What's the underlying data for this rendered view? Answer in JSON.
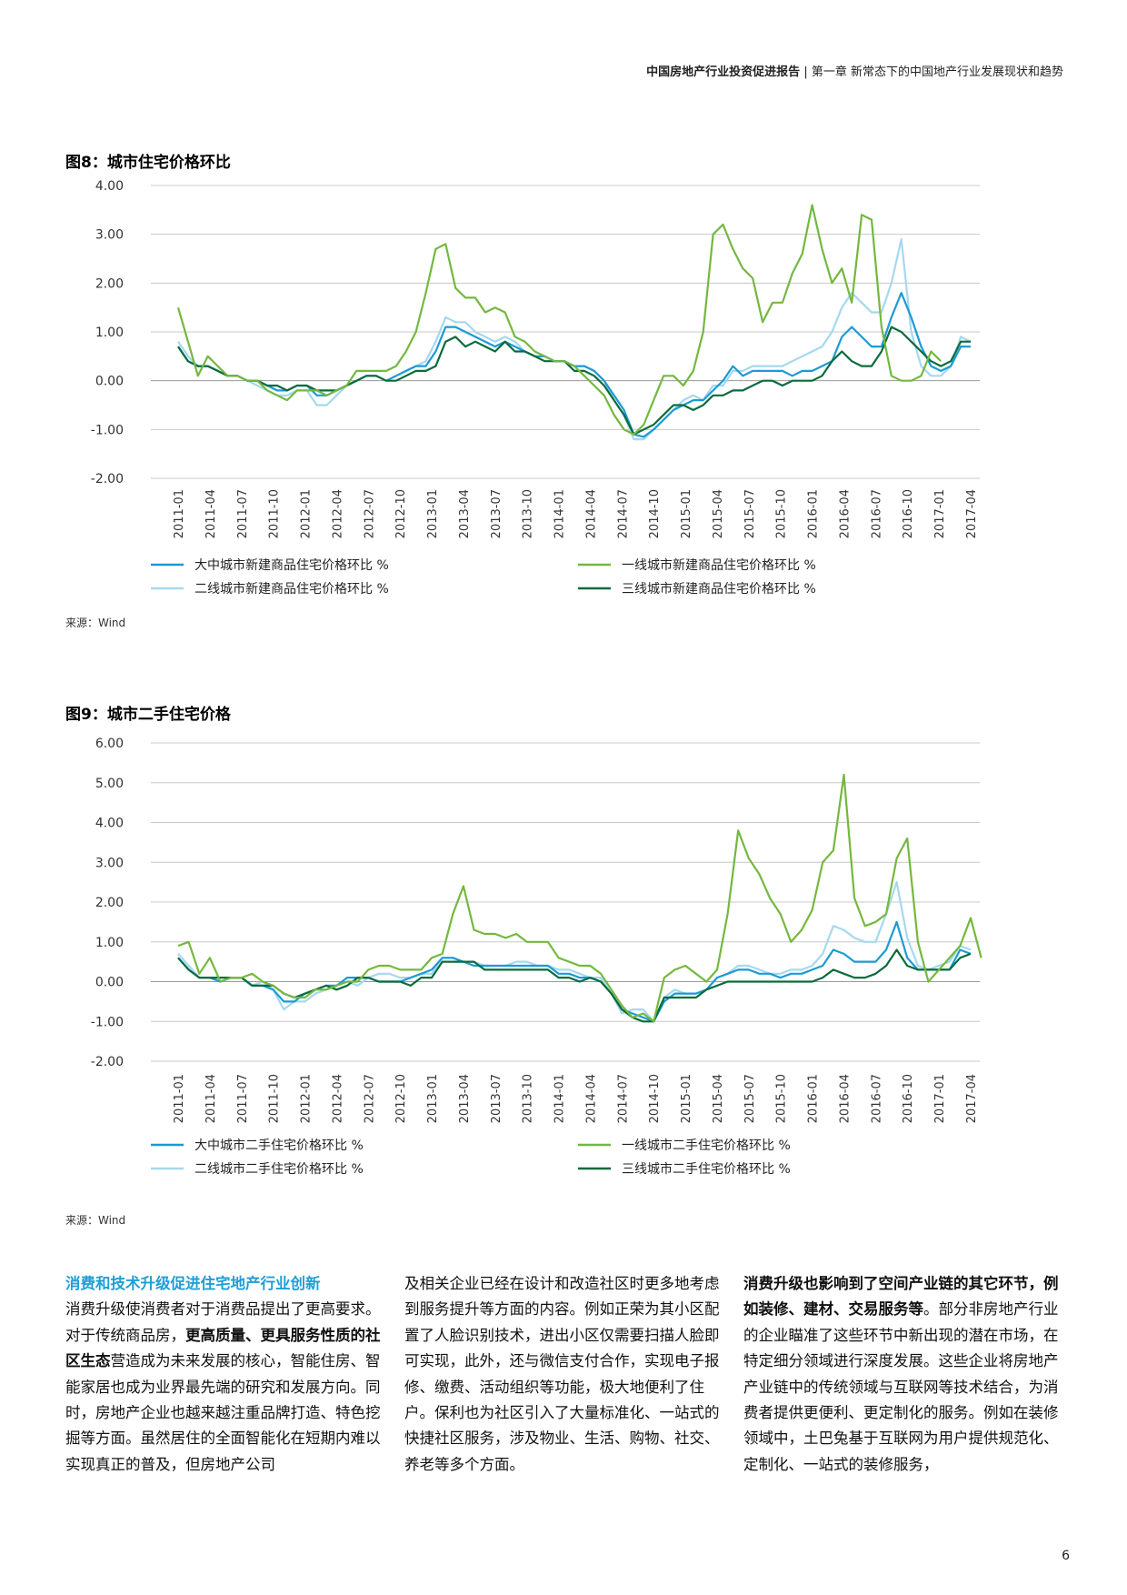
{
  "header": {
    "report_title": "中国房地产行业投资促进报告",
    "separator": "|",
    "chapter": "第一章 新常态下的中国地产行业发展现状和趋势"
  },
  "page_number": "6",
  "colors": {
    "blue": "#1c9ad6",
    "light_blue": "#a6d8ef",
    "green": "#74b83f",
    "dark_green": "#0a6b3c",
    "heading_blue": "#1e9fd6"
  },
  "chart_data": [
    {
      "type": "line",
      "title": "图8：城市住宅价格环比",
      "source": "来源：Wind",
      "xlabel": "",
      "ylabel": "",
      "ylim": [
        -2,
        4
      ],
      "yticks": [
        "4.00",
        "3.00",
        "2.00",
        "1.00",
        "0.00",
        "-1.00",
        "-2.00"
      ],
      "x_tick_labels": [
        "2011-01",
        "2011-04",
        "2011-07",
        "2011-10",
        "2012-01",
        "2012-04",
        "2012-07",
        "2012-10",
        "2013-01",
        "2013-04",
        "2013-07",
        "2013-10",
        "2014-01",
        "2014-04",
        "2014-07",
        "2014-10",
        "2015-01",
        "2015-04",
        "2015-07",
        "2015-10",
        "2016-01",
        "2016-04",
        "2016-07",
        "2016-10",
        "2017-01",
        "2017-04"
      ],
      "grid": true,
      "series": [
        {
          "name": "大中城市新建商品住宅价格环比 %",
          "color": "#1c9ad6",
          "values": [
            0.7,
            0.4,
            0.3,
            0.3,
            0.2,
            0.1,
            0.1,
            0.0,
            0.0,
            -0.1,
            -0.2,
            -0.2,
            -0.1,
            -0.1,
            -0.3,
            -0.3,
            -0.2,
            -0.1,
            0.0,
            0.1,
            0.1,
            0.0,
            0.1,
            0.2,
            0.3,
            0.3,
            0.6,
            1.1,
            1.1,
            1.0,
            0.9,
            0.8,
            0.7,
            0.8,
            0.7,
            0.6,
            0.5,
            0.5,
            0.4,
            0.4,
            0.3,
            0.3,
            0.2,
            0.0,
            -0.3,
            -0.6,
            -1.1,
            -1.15,
            -1.0,
            -0.8,
            -0.6,
            -0.5,
            -0.4,
            -0.4,
            -0.2,
            0.0,
            0.3,
            0.1,
            0.2,
            0.2,
            0.2,
            0.2,
            0.1,
            0.2,
            0.2,
            0.3,
            0.4,
            0.9,
            1.1,
            0.9,
            0.7,
            0.7,
            1.3,
            1.8,
            1.3,
            0.7,
            0.3,
            0.2,
            0.3,
            0.7,
            0.7
          ]
        },
        {
          "name": "一线城市新建商品住宅价格环比 %",
          "color": "#74b83f",
          "values": [
            1.5,
            0.8,
            0.1,
            0.5,
            0.3,
            0.1,
            0.1,
            0.0,
            0.0,
            -0.2,
            -0.3,
            -0.4,
            -0.2,
            -0.2,
            -0.2,
            -0.3,
            -0.2,
            -0.1,
            0.2,
            0.2,
            0.2,
            0.2,
            0.3,
            0.6,
            1.0,
            1.8,
            2.7,
            2.8,
            1.9,
            1.7,
            1.7,
            1.4,
            1.5,
            1.4,
            0.9,
            0.8,
            0.6,
            0.5,
            0.4,
            0.4,
            0.3,
            0.1,
            -0.1,
            -0.3,
            -0.7,
            -1.0,
            -1.1,
            -0.9,
            -0.4,
            0.1,
            0.1,
            -0.1,
            0.2,
            1.0,
            3.0,
            3.2,
            2.7,
            2.3,
            2.1,
            1.2,
            1.6,
            1.6,
            2.2,
            2.6,
            3.6,
            2.7,
            2.0,
            2.3,
            1.6,
            3.4,
            3.3,
            1.1,
            0.1,
            0.0,
            0.0,
            0.1,
            0.6,
            0.4
          ]
        },
        {
          "name": "二线城市新建商品住宅价格环比 %",
          "color": "#a6d8ef",
          "values": [
            0.8,
            0.5,
            0.3,
            0.3,
            0.2,
            0.1,
            0.1,
            0.0,
            -0.1,
            -0.2,
            -0.3,
            -0.3,
            -0.2,
            -0.2,
            -0.5,
            -0.5,
            -0.3,
            -0.1,
            0.0,
            0.1,
            0.1,
            0.0,
            0.1,
            0.2,
            0.3,
            0.4,
            0.8,
            1.3,
            1.2,
            1.2,
            1.0,
            0.9,
            0.8,
            0.9,
            0.8,
            0.6,
            0.5,
            0.5,
            0.4,
            0.4,
            0.3,
            0.3,
            0.2,
            0.0,
            -0.4,
            -0.7,
            -1.2,
            -1.2,
            -1.0,
            -0.8,
            -0.6,
            -0.4,
            -0.3,
            -0.4,
            -0.1,
            -0.1,
            0.2,
            0.2,
            0.3,
            0.3,
            0.3,
            0.3,
            0.4,
            0.5,
            0.6,
            0.7,
            1.0,
            1.5,
            1.8,
            1.6,
            1.4,
            1.4,
            2.0,
            2.9,
            1.0,
            0.3,
            0.1,
            0.1,
            0.3,
            0.9,
            0.8
          ]
        },
        {
          "name": "三线城市新建商品住宅价格环比 %",
          "color": "#0a6b3c",
          "values": [
            0.7,
            0.4,
            0.3,
            0.3,
            0.2,
            0.1,
            0.1,
            0.0,
            0.0,
            -0.1,
            -0.1,
            -0.2,
            -0.1,
            -0.1,
            -0.2,
            -0.2,
            -0.2,
            -0.1,
            0.0,
            0.1,
            0.1,
            0.0,
            0.0,
            0.1,
            0.2,
            0.2,
            0.3,
            0.8,
            0.9,
            0.7,
            0.8,
            0.7,
            0.6,
            0.8,
            0.6,
            0.6,
            0.5,
            0.4,
            0.4,
            0.4,
            0.2,
            0.2,
            0.1,
            -0.1,
            -0.4,
            -0.7,
            -1.1,
            -1.0,
            -0.9,
            -0.7,
            -0.5,
            -0.5,
            -0.6,
            -0.5,
            -0.3,
            -0.3,
            -0.2,
            -0.2,
            -0.1,
            0.0,
            0.0,
            -0.1,
            0.0,
            0.0,
            0.0,
            0.1,
            0.4,
            0.6,
            0.4,
            0.3,
            0.3,
            0.6,
            1.1,
            1.0,
            0.8,
            0.6,
            0.4,
            0.3,
            0.4,
            0.8,
            0.8
          ]
        }
      ]
    },
    {
      "type": "line",
      "title": "图9：城市二手住宅价格",
      "source": "来源：Wind",
      "xlabel": "",
      "ylabel": "",
      "ylim": [
        -2,
        6
      ],
      "yticks": [
        "6.00",
        "5.00",
        "4.00",
        "3.00",
        "2.00",
        "1.00",
        "0.00",
        "-1.00",
        "-2.00"
      ],
      "x_tick_labels": [
        "2011-01",
        "2011-04",
        "2011-07",
        "2011-10",
        "2012-01",
        "2012-04",
        "2012-07",
        "2012-10",
        "2013-01",
        "2013-04",
        "2013-07",
        "2013-10",
        "2014-01",
        "2014-04",
        "2014-07",
        "2014-10",
        "2015-01",
        "2015-04",
        "2015-07",
        "2015-10",
        "2016-01",
        "2016-04",
        "2016-07",
        "2016-10",
        "2017-01",
        "2017-04"
      ],
      "grid": true,
      "series": [
        {
          "name": "大中城市二手住宅价格环比 %",
          "color": "#1c9ad6",
          "values": [
            0.6,
            0.3,
            0.1,
            0.1,
            0.0,
            0.1,
            0.1,
            -0.1,
            -0.1,
            -0.2,
            -0.5,
            -0.5,
            -0.3,
            -0.2,
            -0.1,
            -0.1,
            0.1,
            0.1,
            0.1,
            0.0,
            0.0,
            0.0,
            0.1,
            0.2,
            0.3,
            0.6,
            0.6,
            0.5,
            0.4,
            0.4,
            0.4,
            0.4,
            0.4,
            0.4,
            0.4,
            0.4,
            0.2,
            0.2,
            0.1,
            0.1,
            0.0,
            -0.3,
            -0.7,
            -0.8,
            -0.9,
            -1.0,
            -0.5,
            -0.3,
            -0.3,
            -0.3,
            -0.2,
            0.1,
            0.2,
            0.3,
            0.3,
            0.2,
            0.2,
            0.1,
            0.2,
            0.2,
            0.3,
            0.4,
            0.8,
            0.7,
            0.5,
            0.5,
            0.5,
            0.8,
            1.5,
            0.6,
            0.3,
            0.3,
            0.3,
            0.3,
            0.8,
            0.7
          ]
        },
        {
          "name": "一线城市二手住宅价格环比 %",
          "color": "#74b83f",
          "values": [
            0.9,
            1.0,
            0.2,
            0.6,
            0.0,
            0.1,
            0.1,
            0.2,
            0.0,
            -0.1,
            -0.3,
            -0.4,
            -0.4,
            -0.2,
            -0.2,
            -0.1,
            0.0,
            0.0,
            0.3,
            0.4,
            0.4,
            0.3,
            0.3,
            0.3,
            0.6,
            0.7,
            1.7,
            2.4,
            1.3,
            1.2,
            1.2,
            1.1,
            1.2,
            1.0,
            1.0,
            1.0,
            0.6,
            0.5,
            0.4,
            0.4,
            0.2,
            -0.2,
            -0.6,
            -0.9,
            -0.8,
            -1.0,
            0.1,
            0.3,
            0.4,
            0.2,
            0.0,
            0.3,
            1.7,
            3.8,
            3.1,
            2.7,
            2.1,
            1.7,
            1.0,
            1.3,
            1.8,
            3.0,
            3.3,
            5.2,
            2.1,
            1.4,
            1.5,
            1.7,
            3.1,
            3.6,
            1.0,
            0.0,
            0.3,
            0.6,
            0.9,
            1.6,
            0.6
          ]
        },
        {
          "name": "二线城市二手住宅价格环比 %",
          "color": "#a6d8ef",
          "values": [
            0.7,
            0.4,
            0.1,
            0.1,
            0.0,
            0.1,
            0.1,
            -0.1,
            0.0,
            -0.2,
            -0.7,
            -0.5,
            -0.5,
            -0.3,
            -0.2,
            -0.1,
            0.0,
            -0.1,
            0.1,
            0.2,
            0.2,
            0.1,
            0.1,
            0.2,
            0.2,
            0.6,
            0.6,
            0.5,
            0.5,
            0.4,
            0.4,
            0.4,
            0.5,
            0.5,
            0.4,
            0.4,
            0.3,
            0.3,
            0.2,
            0.1,
            0.1,
            -0.3,
            -0.8,
            -0.7,
            -0.7,
            -1.0,
            -0.4,
            -0.2,
            -0.3,
            -0.3,
            -0.2,
            0.1,
            0.2,
            0.4,
            0.4,
            0.3,
            0.2,
            0.2,
            0.3,
            0.3,
            0.4,
            0.7,
            1.4,
            1.3,
            1.1,
            1.0,
            1.0,
            1.7,
            2.5,
            1.1,
            0.4,
            0.3,
            0.4,
            0.5,
            0.9,
            0.8
          ]
        },
        {
          "name": "三线城市二手住宅价格环比 %",
          "color": "#0a6b3c",
          "values": [
            0.6,
            0.3,
            0.1,
            0.1,
            0.1,
            0.1,
            0.1,
            -0.1,
            -0.1,
            -0.1,
            -0.3,
            -0.4,
            -0.3,
            -0.2,
            -0.1,
            -0.2,
            -0.1,
            0.1,
            0.1,
            0.0,
            0.0,
            0.0,
            -0.1,
            0.1,
            0.1,
            0.5,
            0.5,
            0.5,
            0.5,
            0.3,
            0.3,
            0.3,
            0.3,
            0.3,
            0.3,
            0.3,
            0.1,
            0.1,
            0.0,
            0.1,
            0.0,
            -0.3,
            -0.7,
            -0.9,
            -1.0,
            -1.0,
            -0.4,
            -0.4,
            -0.4,
            -0.4,
            -0.2,
            -0.1,
            0.0,
            0.0,
            0.0,
            0.0,
            0.0,
            0.0,
            0.0,
            0.0,
            0.0,
            0.1,
            0.3,
            0.2,
            0.1,
            0.1,
            0.2,
            0.4,
            0.8,
            0.4,
            0.3,
            0.3,
            0.3,
            0.3,
            0.6,
            0.7
          ]
        }
      ]
    }
  ],
  "body": {
    "col1": {
      "heading": "消费和技术升级促进住宅地产行业创新",
      "t1": "消费升级使消费者对于消费品提出了更高要求。对于传统商品房，",
      "b1": "更高质量、更具服务性质的社区生态",
      "t2": "营造成为未来发展的核心，智能住房、智能家居也成为业界最先端的研究和发展方向。同时，房地产企业也越来越注重品牌打造、特色挖掘等方面。虽然居住的全面智能化在短期内难以实现真正的普及，但房地产公司"
    },
    "col2": {
      "text": "及相关企业已经在设计和改造社区时更多地考虑到服务提升等方面的内容。例如正荣为其小区配置了人脸识别技术，进出小区仅需要扫描人脸即可实现，此外，还与微信支付合作，实现电子报修、缴费、活动组织等功能，极大地便利了住户。保利也为社区引入了大量标准化、一站式的快捷社区服务，涉及物业、生活、购物、社交、养老等多个方面。"
    },
    "col3": {
      "b1": "消费升级也影响到了空间产业链的其它环节，例如装修、建材、交易服务等",
      "t1": "。部分非房地产行业的企业瞄准了这些环节中新出现的潜在市场，在特定细分领域进行深度发展。这些企业将房地产产业链中的传统领域与互联网等技术结合，为消费者提供更便利、更定制化的服务。例如在装修领域中，土巴兔基于互联网为用户提供规范化、定制化、一站式的装修服务，"
    }
  }
}
